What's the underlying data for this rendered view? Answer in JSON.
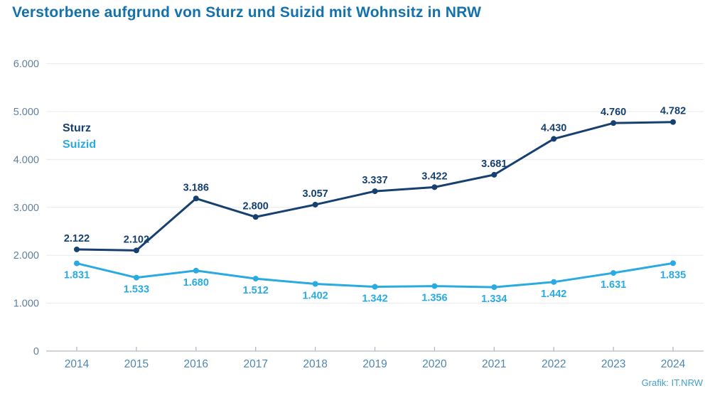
{
  "title": "Verstorbene aufgrund von Sturz und Suizid mit Wohnsitz in NRW",
  "footer": "Grafik: IT.NRW",
  "legend": [
    {
      "label": "Sturz",
      "color": "#16406f"
    },
    {
      "label": "Suizid",
      "color": "#29abe2"
    }
  ],
  "colors": {
    "title": "#1371ad",
    "sturz_line": "#16406f",
    "suizid_line": "#29abe2",
    "y_tick_label": "#60809f",
    "x_tick_label": "#4d87b3",
    "gridline": "#e7eaed",
    "axis_line": "#b3bac2",
    "footer": "#41a0cf",
    "background": "#ffffff"
  },
  "chart_data": {
    "type": "line",
    "x_label_years": [
      "2014",
      "2015",
      "2016",
      "2017",
      "2018",
      "2019",
      "2020",
      "2021",
      "2022",
      "2023",
      "2024"
    ],
    "x": [
      2014,
      2015,
      2016,
      2017,
      2018,
      2019,
      2020,
      2021,
      2022,
      2023,
      2024
    ],
    "series": [
      {
        "name": "Sturz",
        "color": "#16406f",
        "values": [
          2122,
          2102,
          3186,
          2800,
          3057,
          3337,
          3422,
          3681,
          4430,
          4760,
          4782
        ],
        "labels": [
          "2.122",
          "2.102",
          "3.186",
          "2.800",
          "3.057",
          "3.337",
          "3.422",
          "3.681",
          "4.430",
          "4.760",
          "4.782"
        ],
        "label_placement": "above"
      },
      {
        "name": "Suizid",
        "color": "#29abe2",
        "values": [
          1831,
          1533,
          1680,
          1512,
          1402,
          1342,
          1356,
          1334,
          1442,
          1631,
          1835
        ],
        "labels": [
          "1.831",
          "1.533",
          "1.680",
          "1.512",
          "1.402",
          "1.342",
          "1.356",
          "1.334",
          "1.442",
          "1.631",
          "1.835"
        ],
        "label_placement": "below"
      }
    ],
    "ylim": [
      0,
      6000
    ],
    "y_ticks": [
      {
        "value": 0,
        "label": "0"
      },
      {
        "value": 1000,
        "label": "1.000"
      },
      {
        "value": 2000,
        "label": "2.000"
      },
      {
        "value": 3000,
        "label": "3.000"
      },
      {
        "value": 4000,
        "label": "4.000"
      },
      {
        "value": 5000,
        "label": "5.000"
      },
      {
        "value": 6000,
        "label": "6.000"
      }
    ],
    "grid": true,
    "legend_position": "inside-top-left"
  }
}
